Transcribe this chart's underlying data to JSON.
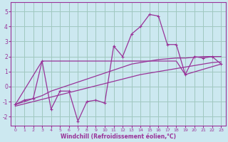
{
  "bg_color": "#cce8f0",
  "grid_color": "#a0c8c0",
  "line_color": "#993399",
  "xlabel": "Windchill (Refroidissement éolien,°C)",
  "xlabel_color": "#993399",
  "tick_color": "#993399",
  "xlim": [
    -0.5,
    23.5
  ],
  "ylim": [
    -2.6,
    5.6
  ],
  "yticks": [
    -2,
    -1,
    0,
    1,
    2,
    3,
    4,
    5
  ],
  "xticks": [
    0,
    1,
    2,
    3,
    4,
    5,
    6,
    7,
    8,
    9,
    10,
    11,
    12,
    13,
    14,
    15,
    16,
    17,
    18,
    19,
    20,
    21,
    22,
    23
  ],
  "series1_x": [
    0,
    1,
    2,
    3,
    4,
    5,
    6,
    7,
    8,
    9,
    10,
    11,
    12,
    13,
    14,
    15,
    16,
    17,
    18,
    19,
    20,
    21,
    22,
    23
  ],
  "series1_y": [
    -1.3,
    -1.15,
    -1.0,
    -0.85,
    -0.7,
    -0.55,
    -0.4,
    -0.25,
    -0.1,
    0.05,
    0.2,
    0.35,
    0.5,
    0.65,
    0.8,
    0.9,
    1.0,
    1.1,
    1.2,
    1.3,
    1.4,
    1.5,
    1.6,
    1.65
  ],
  "series2_x": [
    0,
    1,
    2,
    3,
    4,
    5,
    6,
    7,
    8,
    9,
    10,
    11,
    12,
    13,
    14,
    15,
    16,
    17,
    18,
    19,
    20,
    21,
    22,
    23
  ],
  "series2_y": [
    -1.2,
    -1.0,
    -0.8,
    -0.6,
    -0.3,
    -0.1,
    0.1,
    0.3,
    0.5,
    0.7,
    0.9,
    1.1,
    1.3,
    1.5,
    1.6,
    1.7,
    1.8,
    1.85,
    1.9,
    1.9,
    1.95,
    2.0,
    2.0,
    2.0
  ],
  "series3_x": [
    0,
    3,
    18,
    19,
    23
  ],
  "series3_y": [
    -1.2,
    1.7,
    1.7,
    0.8,
    1.5
  ],
  "series4_x": [
    0,
    1,
    2,
    3,
    4,
    5,
    6,
    7,
    8,
    9,
    10,
    11,
    12,
    13,
    14,
    15,
    16,
    17,
    18,
    19,
    20,
    21,
    22,
    23
  ],
  "series4_y": [
    -1.2,
    -0.9,
    -0.8,
    1.7,
    -1.5,
    -0.3,
    -0.3,
    -2.3,
    -1.0,
    -0.9,
    -1.1,
    2.7,
    2.0,
    3.5,
    4.0,
    4.8,
    4.7,
    2.8,
    2.8,
    0.8,
    2.0,
    1.9,
    2.0,
    1.5
  ]
}
